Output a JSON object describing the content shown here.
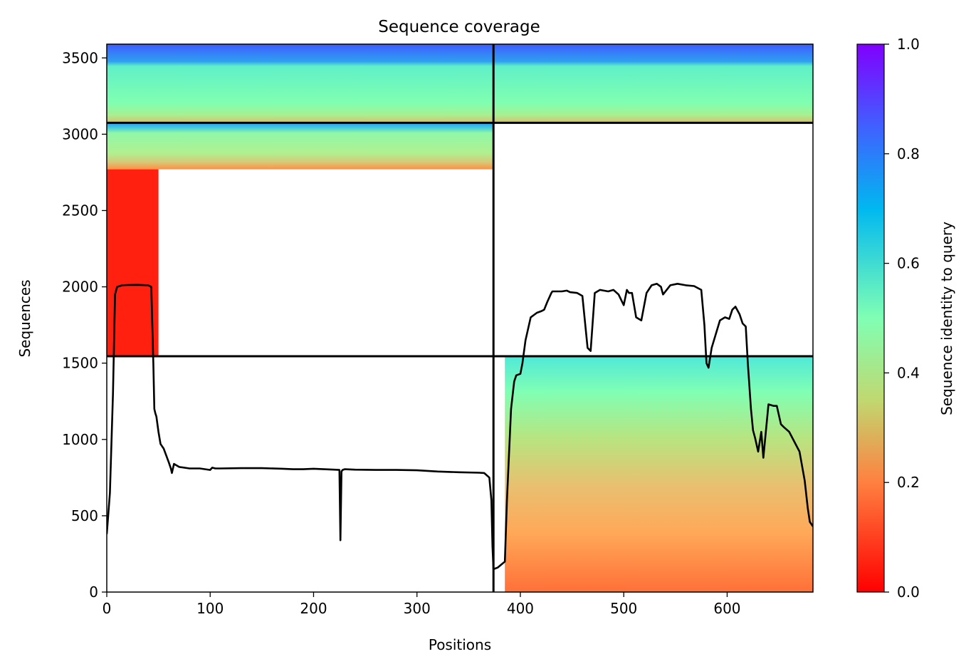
{
  "chart_data": {
    "type": "heatmap",
    "title": "Sequence coverage",
    "xlabel": "Positions",
    "ylabel": "Sequences",
    "xlim": [
      0,
      683
    ],
    "ylim": [
      0,
      3590
    ],
    "xticks": [
      0,
      100,
      200,
      300,
      400,
      500,
      600
    ],
    "yticks": [
      0,
      500,
      1000,
      1500,
      2000,
      2500,
      3000,
      3500
    ],
    "grid": false,
    "colorbar": {
      "label": "Sequence identity to query",
      "range": [
        0,
        1
      ],
      "ticks": [
        "0.0",
        "0.2",
        "0.4",
        "0.6",
        "0.8",
        "1.0"
      ],
      "colormap": "rainbow_r",
      "colors": [
        "#ff0000",
        "#ff8040",
        "#c0d870",
        "#80ffb4",
        "#40b0f0",
        "#8000ff"
      ]
    },
    "chain_boundary_position": 374,
    "block_boundary_sequences": [
      1545,
      3075
    ],
    "blocks": [
      {
        "sequences": [
          3075,
          3590
        ],
        "positions": [
          0,
          683
        ],
        "identity_top": 0.85,
        "identity_bottom": 0.35
      },
      {
        "sequences": [
          2770,
          3075
        ],
        "positions": [
          0,
          374
        ],
        "identity_top": 0.8,
        "identity_bottom": 0.25
      },
      {
        "sequences": [
          1545,
          2770
        ],
        "positions": [
          0,
          50
        ],
        "identity_top": 0.03,
        "identity_bottom": 0.03
      },
      {
        "sequences": [
          0,
          1545
        ],
        "positions": [
          385,
          683
        ],
        "identity_top": 0.6,
        "identity_bottom": 0.15
      }
    ],
    "series": [
      {
        "x": [
          0,
          3,
          6,
          8,
          10,
          15,
          20,
          30,
          40,
          43,
          45,
          46,
          47,
          48,
          50,
          52,
          55,
          60,
          62,
          63,
          65,
          70,
          80,
          90,
          100,
          102,
          105,
          110,
          130,
          150,
          170,
          180,
          190,
          200,
          210,
          220,
          225,
          226,
          227,
          228,
          230,
          240,
          260,
          280,
          300,
          320,
          340,
          360,
          365,
          370,
          372,
          373,
          374,
          378,
          385,
          387,
          389,
          391,
          394,
          396,
          400,
          402,
          405,
          410,
          416,
          420,
          423,
          426,
          430,
          431,
          440,
          445,
          448,
          455,
          460,
          465,
          468,
          472,
          477,
          485,
          490,
          495,
          500,
          503,
          505,
          508,
          510,
          512,
          517,
          522,
          527,
          532,
          536,
          538,
          545,
          552,
          560,
          568,
          575,
          578,
          580,
          582,
          585,
          593,
          598,
          602,
          605,
          608,
          612,
          615,
          618,
          620,
          623,
          625,
          627,
          630,
          633,
          635,
          640,
          645,
          648,
          652,
          655,
          660,
          670,
          675,
          678,
          680,
          683
        ],
        "y": [
          380,
          650,
          1300,
          1950,
          2000,
          2010,
          2012,
          2013,
          2010,
          2000,
          1500,
          1200,
          1170,
          1150,
          1050,
          970,
          940,
          850,
          810,
          780,
          840,
          820,
          810,
          810,
          800,
          815,
          810,
          810,
          812,
          812,
          808,
          805,
          805,
          808,
          805,
          802,
          800,
          340,
          790,
          800,
          805,
          802,
          800,
          800,
          798,
          790,
          785,
          782,
          780,
          750,
          600,
          300,
          150,
          160,
          200,
          600,
          900,
          1200,
          1380,
          1420,
          1430,
          1500,
          1650,
          1800,
          1830,
          1840,
          1850,
          1900,
          1960,
          1970,
          1970,
          1975,
          1965,
          1960,
          1940,
          1600,
          1580,
          1960,
          1980,
          1970,
          1980,
          1950,
          1880,
          1980,
          1960,
          1960,
          1880,
          1800,
          1780,
          1960,
          2010,
          2020,
          2000,
          1950,
          2010,
          2020,
          2010,
          2005,
          1980,
          1750,
          1500,
          1470,
          1600,
          1780,
          1800,
          1790,
          1850,
          1870,
          1820,
          1760,
          1740,
          1500,
          1200,
          1060,
          1010,
          920,
          1050,
          880,
          1230,
          1220,
          1220,
          1100,
          1080,
          1050,
          920,
          730,
          550,
          460,
          430
        ]
      }
    ]
  }
}
